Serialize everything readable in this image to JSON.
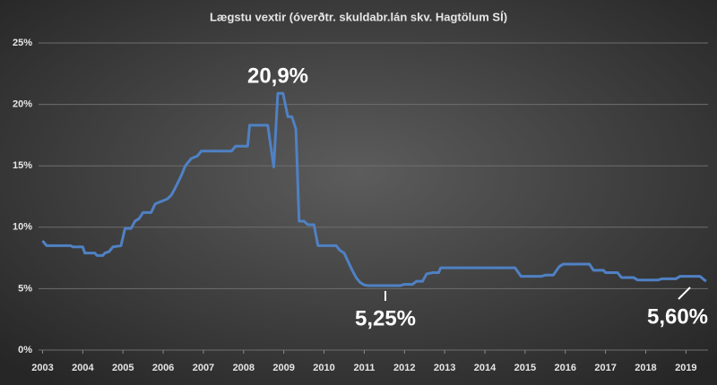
{
  "chart_data": {
    "type": "line",
    "title": "Lægstu vextir (óverðtr. skuldabr.lán skv. Hagtölum SÍ)",
    "x": [
      2003.0,
      2003.1,
      2003.7,
      2003.75,
      2004.0,
      2004.05,
      2004.3,
      2004.35,
      2004.5,
      2004.55,
      2004.65,
      2004.75,
      2004.95,
      2005.05,
      2005.2,
      2005.3,
      2005.4,
      2005.5,
      2005.7,
      2005.8,
      2005.95,
      2006.1,
      2006.2,
      2006.3,
      2006.45,
      2006.55,
      2006.7,
      2006.85,
      2006.95,
      2007.7,
      2007.8,
      2008.1,
      2008.15,
      2008.6,
      2008.75,
      2008.85,
      2008.98,
      2009.1,
      2009.2,
      2009.3,
      2009.38,
      2009.5,
      2009.6,
      2009.75,
      2009.85,
      2010.3,
      2010.4,
      2010.5,
      2010.6,
      2010.7,
      2010.8,
      2010.9,
      2011.0,
      2011.1,
      2011.9,
      2012.0,
      2012.2,
      2012.3,
      2012.45,
      2012.55,
      2012.7,
      2012.85,
      2012.9,
      2014.75,
      2014.9,
      2015.4,
      2015.5,
      2015.7,
      2015.85,
      2015.95,
      2016.6,
      2016.7,
      2016.95,
      2017.0,
      2017.3,
      2017.4,
      2017.7,
      2017.8,
      2018.3,
      2018.4,
      2018.75,
      2018.85,
      2019.35,
      2019.5
    ],
    "values": [
      8.9,
      8.5,
      8.5,
      8.4,
      8.4,
      7.9,
      7.9,
      7.7,
      7.7,
      7.9,
      8.0,
      8.4,
      8.5,
      9.9,
      9.9,
      10.5,
      10.7,
      11.2,
      11.2,
      11.9,
      12.1,
      12.3,
      12.6,
      13.2,
      14.2,
      15.0,
      15.6,
      15.8,
      16.2,
      16.2,
      16.6,
      16.6,
      18.3,
      18.3,
      14.9,
      20.9,
      20.9,
      19.0,
      19.0,
      18.0,
      10.5,
      10.5,
      10.2,
      10.2,
      8.5,
      8.5,
      8.1,
      7.9,
      7.2,
      6.5,
      5.9,
      5.5,
      5.3,
      5.25,
      5.25,
      5.35,
      5.35,
      5.6,
      5.6,
      6.2,
      6.3,
      6.3,
      6.7,
      6.7,
      6.0,
      6.0,
      6.1,
      6.1,
      6.8,
      7.0,
      7.0,
      6.5,
      6.5,
      6.3,
      6.3,
      5.9,
      5.9,
      5.7,
      5.7,
      5.8,
      5.8,
      6.0,
      6.0,
      5.6
    ],
    "color": "#4f81c4",
    "xlim": [
      2002.9,
      2019.55
    ],
    "xticks": [
      2003,
      2004,
      2005,
      2006,
      2007,
      2008,
      2009,
      2010,
      2011,
      2012,
      2013,
      2014,
      2015,
      2016,
      2017,
      2018,
      2019
    ],
    "ylim": [
      0,
      25
    ],
    "yticks": [
      {
        "value": 0,
        "label": "0%"
      },
      {
        "value": 5,
        "label": "5%"
      },
      {
        "value": 10,
        "label": "10%"
      },
      {
        "value": 15,
        "label": "15%"
      },
      {
        "value": 20,
        "label": "20%"
      },
      {
        "value": 25,
        "label": "25%"
      }
    ],
    "grid": true,
    "annotations": [
      "20,9%",
      "5,25%",
      "5,60%"
    ]
  }
}
